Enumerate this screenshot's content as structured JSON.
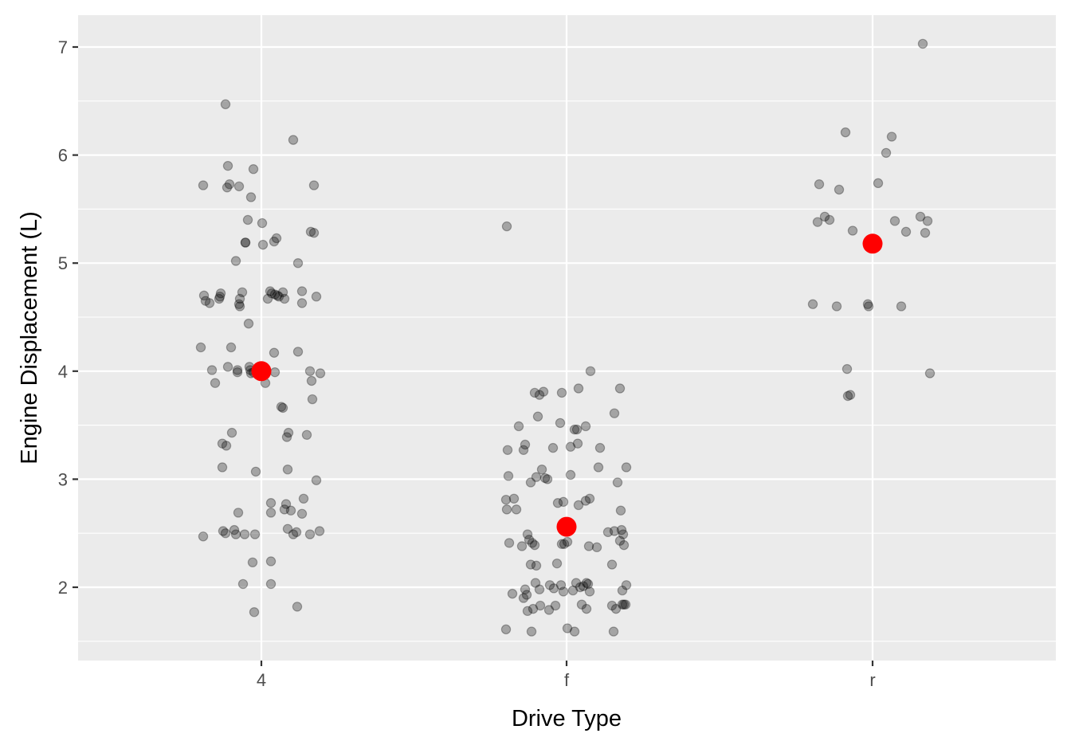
{
  "chart_data": {
    "type": "scatter",
    "subtype": "jitter-strip with group means",
    "title": "",
    "xlabel": "Drive Type",
    "ylabel": "Engine Displacement (L)",
    "categories": [
      "4",
      "f",
      "r"
    ],
    "yticks": [
      2,
      3,
      4,
      5,
      6,
      7
    ],
    "ylim": [
      1.4,
      7.25
    ],
    "grid": true,
    "legend": "none",
    "colors": {
      "panel_bg": "#EBEBEB",
      "grid": "#FFFFFF",
      "point": "#000000",
      "point_alpha": 0.3,
      "mean_point": "#FF0000",
      "tick_label": "#4D4D4D",
      "tick_mark": "#333333"
    },
    "series": [
      {
        "name": "observations (jittered)",
        "points": {
          "4": [
            {
              "dx": -45,
              "y": 6.47
            },
            {
              "dx": 40,
              "y": 6.14
            },
            {
              "dx": -42,
              "y": 5.9
            },
            {
              "dx": -10,
              "y": 5.87
            },
            {
              "dx": -73,
              "y": 5.72
            },
            {
              "dx": -40,
              "y": 5.73
            },
            {
              "dx": -28,
              "y": 5.71
            },
            {
              "dx": 66,
              "y": 5.72
            },
            {
              "dx": -43,
              "y": 5.7
            },
            {
              "dx": -13,
              "y": 5.61
            },
            {
              "dx": -17,
              "y": 5.4
            },
            {
              "dx": 1,
              "y": 5.37
            },
            {
              "dx": 19,
              "y": 5.23
            },
            {
              "dx": 16,
              "y": 5.2
            },
            {
              "dx": -20,
              "y": 5.19
            },
            {
              "dx": -20,
              "y": 5.19
            },
            {
              "dx": 2,
              "y": 5.17
            },
            {
              "dx": 62,
              "y": 5.29
            },
            {
              "dx": 66,
              "y": 5.28
            },
            {
              "dx": -32,
              "y": 5.02
            },
            {
              "dx": 46,
              "y": 5.0
            },
            {
              "dx": -72,
              "y": 4.7
            },
            {
              "dx": -70,
              "y": 4.65
            },
            {
              "dx": -65,
              "y": 4.63
            },
            {
              "dx": -51,
              "y": 4.72
            },
            {
              "dx": -52,
              "y": 4.69
            },
            {
              "dx": -53,
              "y": 4.67
            },
            {
              "dx": -24,
              "y": 4.73
            },
            {
              "dx": -27,
              "y": 4.67
            },
            {
              "dx": -28,
              "y": 4.62
            },
            {
              "dx": -27,
              "y": 4.6
            },
            {
              "dx": 11,
              "y": 4.74
            },
            {
              "dx": 13,
              "y": 4.72
            },
            {
              "dx": 17,
              "y": 4.71
            },
            {
              "dx": 20,
              "y": 4.7
            },
            {
              "dx": 22,
              "y": 4.69
            },
            {
              "dx": 27,
              "y": 4.73
            },
            {
              "dx": 8,
              "y": 4.67
            },
            {
              "dx": 29,
              "y": 4.67
            },
            {
              "dx": 51,
              "y": 4.74
            },
            {
              "dx": 51,
              "y": 4.63
            },
            {
              "dx": 69,
              "y": 4.69
            },
            {
              "dx": -16,
              "y": 4.44
            },
            {
              "dx": -76,
              "y": 4.22
            },
            {
              "dx": -38,
              "y": 4.22
            },
            {
              "dx": 16,
              "y": 4.17
            },
            {
              "dx": 46,
              "y": 4.18
            },
            {
              "dx": -62,
              "y": 4.01
            },
            {
              "dx": -42,
              "y": 4.04
            },
            {
              "dx": -30,
              "y": 4.01
            },
            {
              "dx": -30,
              "y": 3.99
            },
            {
              "dx": -15,
              "y": 4.04
            },
            {
              "dx": -14,
              "y": 4.01
            },
            {
              "dx": -13,
              "y": 3.98
            },
            {
              "dx": -10,
              "y": 3.99
            },
            {
              "dx": 5,
              "y": 3.89
            },
            {
              "dx": 17,
              "y": 3.99
            },
            {
              "dx": 61,
              "y": 4.0
            },
            {
              "dx": 74,
              "y": 3.98
            },
            {
              "dx": -58,
              "y": 3.89
            },
            {
              "dx": 63,
              "y": 3.91
            },
            {
              "dx": 25,
              "y": 3.67
            },
            {
              "dx": 27,
              "y": 3.66
            },
            {
              "dx": 64,
              "y": 3.74
            },
            {
              "dx": -49,
              "y": 3.33
            },
            {
              "dx": -44,
              "y": 3.31
            },
            {
              "dx": -37,
              "y": 3.43
            },
            {
              "dx": 32,
              "y": 3.39
            },
            {
              "dx": 34,
              "y": 3.43
            },
            {
              "dx": 57,
              "y": 3.41
            },
            {
              "dx": -49,
              "y": 3.11
            },
            {
              "dx": -7,
              "y": 3.07
            },
            {
              "dx": 33,
              "y": 3.09
            },
            {
              "dx": 69,
              "y": 2.99
            },
            {
              "dx": -29,
              "y": 2.69
            },
            {
              "dx": 12,
              "y": 2.78
            },
            {
              "dx": 31,
              "y": 2.77
            },
            {
              "dx": 29,
              "y": 2.72
            },
            {
              "dx": 37,
              "y": 2.71
            },
            {
              "dx": 12,
              "y": 2.69
            },
            {
              "dx": 53,
              "y": 2.82
            },
            {
              "dx": 51,
              "y": 2.68
            },
            {
              "dx": -73,
              "y": 2.47
            },
            {
              "dx": -48,
              "y": 2.52
            },
            {
              "dx": -45,
              "y": 2.5
            },
            {
              "dx": -34,
              "y": 2.53
            },
            {
              "dx": -32,
              "y": 2.49
            },
            {
              "dx": -21,
              "y": 2.49
            },
            {
              "dx": -8,
              "y": 2.49
            },
            {
              "dx": 33,
              "y": 2.54
            },
            {
              "dx": 40,
              "y": 2.49
            },
            {
              "dx": 44,
              "y": 2.51
            },
            {
              "dx": 61,
              "y": 2.49
            },
            {
              "dx": 73,
              "y": 2.52
            },
            {
              "dx": -11,
              "y": 2.23
            },
            {
              "dx": 12,
              "y": 2.24
            },
            {
              "dx": -23,
              "y": 2.03
            },
            {
              "dx": 12,
              "y": 2.03
            },
            {
              "dx": -9,
              "y": 1.77
            },
            {
              "dx": 45,
              "y": 1.82
            }
          ],
          "f": [
            {
              "dx": -75,
              "y": 5.34
            },
            {
              "dx": 30,
              "y": 4.0
            },
            {
              "dx": -40,
              "y": 3.8
            },
            {
              "dx": -34,
              "y": 3.78
            },
            {
              "dx": -29,
              "y": 3.81
            },
            {
              "dx": -6,
              "y": 3.8
            },
            {
              "dx": 15,
              "y": 3.84
            },
            {
              "dx": 67,
              "y": 3.84
            },
            {
              "dx": -36,
              "y": 3.58
            },
            {
              "dx": 60,
              "y": 3.61
            },
            {
              "dx": -60,
              "y": 3.49
            },
            {
              "dx": -8,
              "y": 3.52
            },
            {
              "dx": 10,
              "y": 3.46
            },
            {
              "dx": 13,
              "y": 3.46
            },
            {
              "dx": 24,
              "y": 3.49
            },
            {
              "dx": -74,
              "y": 3.27
            },
            {
              "dx": -52,
              "y": 3.32
            },
            {
              "dx": -54,
              "y": 3.27
            },
            {
              "dx": -17,
              "y": 3.29
            },
            {
              "dx": 5,
              "y": 3.3
            },
            {
              "dx": 14,
              "y": 3.33
            },
            {
              "dx": 42,
              "y": 3.29
            },
            {
              "dx": -73,
              "y": 3.03
            },
            {
              "dx": -45,
              "y": 2.97
            },
            {
              "dx": -38,
              "y": 3.02
            },
            {
              "dx": -31,
              "y": 3.09
            },
            {
              "dx": -27,
              "y": 3.01
            },
            {
              "dx": -24,
              "y": 3.0
            },
            {
              "dx": 5,
              "y": 3.04
            },
            {
              "dx": 40,
              "y": 3.11
            },
            {
              "dx": 64,
              "y": 2.97
            },
            {
              "dx": 75,
              "y": 3.11
            },
            {
              "dx": -76,
              "y": 2.81
            },
            {
              "dx": -66,
              "y": 2.82
            },
            {
              "dx": -63,
              "y": 2.72
            },
            {
              "dx": -75,
              "y": 2.72
            },
            {
              "dx": -11,
              "y": 2.78
            },
            {
              "dx": -4,
              "y": 2.79
            },
            {
              "dx": 15,
              "y": 2.76
            },
            {
              "dx": 24,
              "y": 2.8
            },
            {
              "dx": 29,
              "y": 2.82
            },
            {
              "dx": 68,
              "y": 2.71
            },
            {
              "dx": -49,
              "y": 2.49
            },
            {
              "dx": -43,
              "y": 2.41
            },
            {
              "dx": -40,
              "y": 2.39
            },
            {
              "dx": -47,
              "y": 2.44
            },
            {
              "dx": -72,
              "y": 2.41
            },
            {
              "dx": -56,
              "y": 2.38
            },
            {
              "dx": -6,
              "y": 2.4
            },
            {
              "dx": -3,
              "y": 2.4
            },
            {
              "dx": 1,
              "y": 2.42
            },
            {
              "dx": 28,
              "y": 2.38
            },
            {
              "dx": 38,
              "y": 2.37
            },
            {
              "dx": 52,
              "y": 2.51
            },
            {
              "dx": 60,
              "y": 2.52
            },
            {
              "dx": 69,
              "y": 2.53
            },
            {
              "dx": 67,
              "y": 2.43
            },
            {
              "dx": 71,
              "y": 2.49
            },
            {
              "dx": 72,
              "y": 2.39
            },
            {
              "dx": -45,
              "y": 2.21
            },
            {
              "dx": -38,
              "y": 2.2
            },
            {
              "dx": -12,
              "y": 2.22
            },
            {
              "dx": 57,
              "y": 2.21
            },
            {
              "dx": -68,
              "y": 1.94
            },
            {
              "dx": -52,
              "y": 1.98
            },
            {
              "dx": -54,
              "y": 1.9
            },
            {
              "dx": -50,
              "y": 1.93
            },
            {
              "dx": -39,
              "y": 2.04
            },
            {
              "dx": -34,
              "y": 1.98
            },
            {
              "dx": -21,
              "y": 2.02
            },
            {
              "dx": -16,
              "y": 1.99
            },
            {
              "dx": -7,
              "y": 2.02
            },
            {
              "dx": -4,
              "y": 1.96
            },
            {
              "dx": 8,
              "y": 1.97
            },
            {
              "dx": 12,
              "y": 2.04
            },
            {
              "dx": 17,
              "y": 2.0
            },
            {
              "dx": 21,
              "y": 2.01
            },
            {
              "dx": 25,
              "y": 2.04
            },
            {
              "dx": 27,
              "y": 2.03
            },
            {
              "dx": 29,
              "y": 1.96
            },
            {
              "dx": 70,
              "y": 1.97
            },
            {
              "dx": 75,
              "y": 2.02
            },
            {
              "dx": -42,
              "y": 1.8
            },
            {
              "dx": -49,
              "y": 1.78
            },
            {
              "dx": -33,
              "y": 1.83
            },
            {
              "dx": -22,
              "y": 1.79
            },
            {
              "dx": -14,
              "y": 1.83
            },
            {
              "dx": 19,
              "y": 1.84
            },
            {
              "dx": 25,
              "y": 1.8
            },
            {
              "dx": 57,
              "y": 1.83
            },
            {
              "dx": 62,
              "y": 1.8
            },
            {
              "dx": 70,
              "y": 1.84
            },
            {
              "dx": 72,
              "y": 1.84
            },
            {
              "dx": 74,
              "y": 1.84
            },
            {
              "dx": -76,
              "y": 1.61
            },
            {
              "dx": -44,
              "y": 1.59
            },
            {
              "dx": 1,
              "y": 1.62
            },
            {
              "dx": 10,
              "y": 1.59
            },
            {
              "dx": 59,
              "y": 1.59
            }
          ],
          "r": [
            {
              "dx": 63,
              "y": 7.03
            },
            {
              "dx": -34,
              "y": 6.21
            },
            {
              "dx": 24,
              "y": 6.17
            },
            {
              "dx": 17,
              "y": 6.02
            },
            {
              "dx": -67,
              "y": 5.73
            },
            {
              "dx": -42,
              "y": 5.68
            },
            {
              "dx": 7,
              "y": 5.74
            },
            {
              "dx": -60,
              "y": 5.43
            },
            {
              "dx": -54,
              "y": 5.4
            },
            {
              "dx": -69,
              "y": 5.38
            },
            {
              "dx": 28,
              "y": 5.39
            },
            {
              "dx": 60,
              "y": 5.43
            },
            {
              "dx": 69,
              "y": 5.39
            },
            {
              "dx": -25,
              "y": 5.3
            },
            {
              "dx": 42,
              "y": 5.29
            },
            {
              "dx": 66,
              "y": 5.28
            },
            {
              "dx": -75,
              "y": 4.62
            },
            {
              "dx": -45,
              "y": 4.6
            },
            {
              "dx": -6,
              "y": 4.62
            },
            {
              "dx": -5,
              "y": 4.6
            },
            {
              "dx": 36,
              "y": 4.6
            },
            {
              "dx": -32,
              "y": 4.02
            },
            {
              "dx": 72,
              "y": 3.98
            },
            {
              "dx": -31,
              "y": 3.77
            },
            {
              "dx": -28,
              "y": 3.78
            }
          ]
        }
      },
      {
        "name": "group mean",
        "categories": [
          "4",
          "f",
          "r"
        ],
        "values": [
          4.0,
          2.56,
          5.18
        ]
      }
    ]
  }
}
